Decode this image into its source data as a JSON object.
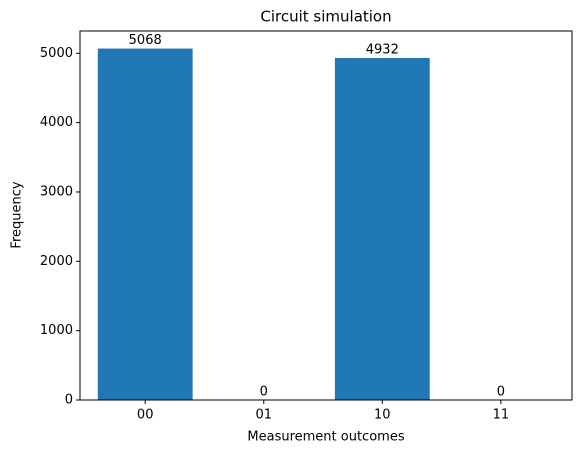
{
  "chart_data": {
    "type": "bar",
    "title": "Circuit simulation",
    "x_label": "Measurement outcomes",
    "y_label": "Frequency",
    "categories": [
      "00",
      "01",
      "10",
      "11"
    ],
    "values": [
      5068,
      0,
      4932,
      0
    ],
    "color": "#1f77b4",
    "ylim": [
      0,
      5321.4
    ],
    "yticks": [
      0,
      1000,
      2000,
      3000,
      4000,
      5000
    ],
    "grid": false
  }
}
